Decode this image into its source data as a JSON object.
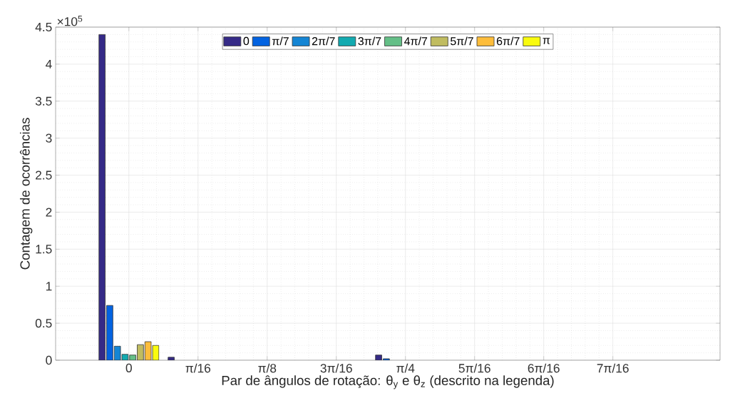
{
  "chart_data": {
    "type": "bar",
    "xlabel": "Par de ângulos de rotação: θ$_{y}$ e θ$_{z}$ (descrito na legenda)",
    "ylabel": "Contagem de ocorrências",
    "annotations": [
      "×10$^{5}$"
    ],
    "categories": [
      "0",
      "π/16",
      "π/8",
      "3π/16",
      "π/4",
      "5π/16",
      "6π/16",
      "7π/16"
    ],
    "series": [
      {
        "name": "0",
        "color": "#352a87",
        "values": [
          4.4,
          0.04,
          0,
          0,
          0.07,
          0,
          0,
          0
        ]
      },
      {
        "name": "π/7",
        "color": "#0363e1",
        "values": [
          0.74,
          0,
          0,
          0,
          0.02,
          0,
          0,
          0
        ]
      },
      {
        "name": "2π/7",
        "color": "#1485d4",
        "values": [
          0.19,
          0,
          0,
          0,
          0,
          0,
          0,
          0
        ]
      },
      {
        "name": "3π/7",
        "color": "#12aab0",
        "values": [
          0.08,
          0,
          0,
          0,
          0,
          0,
          0,
          0
        ]
      },
      {
        "name": "4π/7",
        "color": "#64bf87",
        "values": [
          0.07,
          0,
          0,
          0,
          0,
          0,
          0,
          0
        ]
      },
      {
        "name": "5π/7",
        "color": "#c0bc60",
        "values": [
          0.21,
          0,
          0,
          0,
          0,
          0,
          0,
          0
        ]
      },
      {
        "name": "6π/7",
        "color": "#fdbd3b",
        "values": [
          0.25,
          0,
          0,
          0,
          0,
          0,
          0,
          0
        ]
      },
      {
        "name": "π",
        "color": "#f9fb0e",
        "values": [
          0.2,
          0,
          0,
          0,
          0,
          0,
          0,
          0
        ]
      }
    ],
    "ylim": [
      0,
      4.5
    ],
    "yticks": [
      0,
      0.5,
      1,
      1.5,
      2,
      2.5,
      3,
      3.5,
      4,
      4.5
    ],
    "grid": true,
    "legend": "top"
  }
}
